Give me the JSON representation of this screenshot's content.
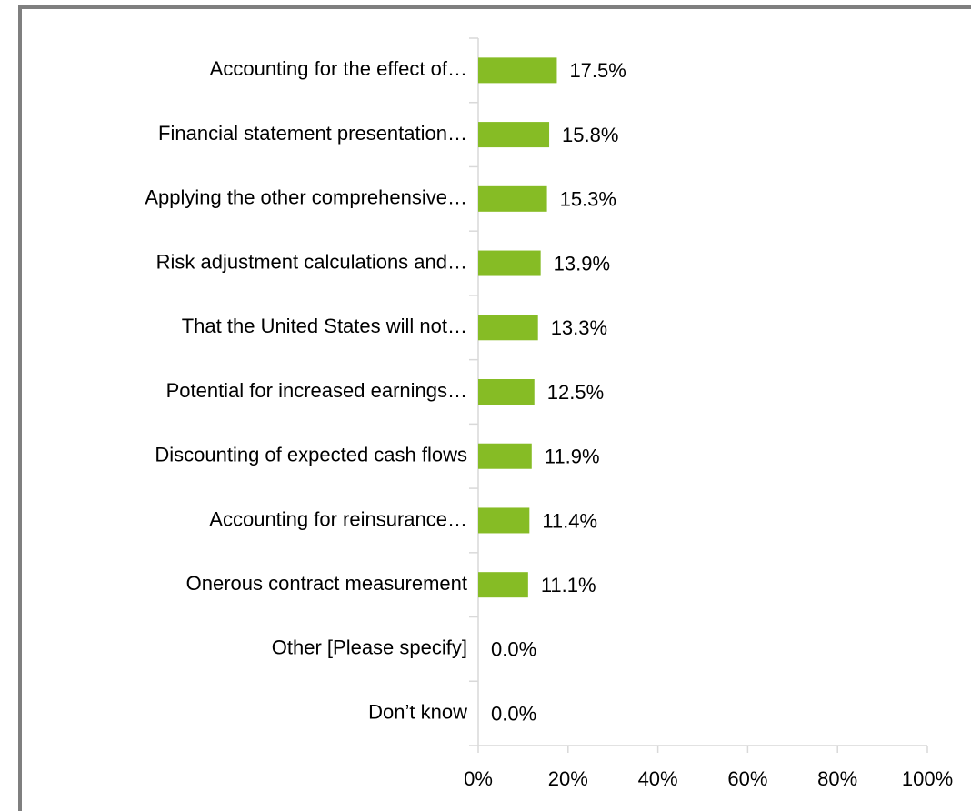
{
  "chart_data": {
    "type": "hbar",
    "categories": [
      "Accounting for the effect of…",
      "Financial statement presentation…",
      "Applying the other comprehensive…",
      "Risk adjustment calculations and…",
      "That the United States will not…",
      "Potential for increased earnings…",
      "Discounting of expected cash flows",
      "Accounting for reinsurance…",
      "Onerous contract measurement",
      "Other [Please specify]",
      "Don’t know"
    ],
    "values": [
      17.5,
      15.8,
      15.3,
      13.9,
      13.3,
      12.5,
      11.9,
      11.4,
      11.1,
      0.0,
      0.0
    ],
    "value_labels": [
      "17.5%",
      "15.8%",
      "15.3%",
      "13.9%",
      "13.3%",
      "12.5%",
      "11.9%",
      "11.4%",
      "11.1%",
      "0.0%",
      "0.0%"
    ],
    "color": "#86bc25",
    "xlim": [
      0,
      100
    ],
    "xticks": [
      {
        "value": 0,
        "label": "0%"
      },
      {
        "value": 20,
        "label": "20%"
      },
      {
        "value": 40,
        "label": "40%"
      },
      {
        "value": 60,
        "label": "60%"
      },
      {
        "value": 80,
        "label": "80%"
      },
      {
        "value": 100,
        "label": "100%"
      }
    ],
    "grid": false
  }
}
